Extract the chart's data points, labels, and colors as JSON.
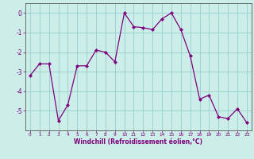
{
  "x": [
    0,
    1,
    2,
    3,
    4,
    5,
    6,
    7,
    8,
    9,
    10,
    11,
    12,
    13,
    14,
    15,
    16,
    17,
    18,
    19,
    20,
    21,
    22,
    23
  ],
  "y": [
    -3.2,
    -2.6,
    -2.6,
    -5.5,
    -4.7,
    -2.7,
    -2.7,
    -1.9,
    -2.0,
    -2.5,
    0.0,
    -0.7,
    -0.75,
    -0.85,
    -0.3,
    0.0,
    -0.85,
    -2.2,
    -4.4,
    -4.2,
    -5.3,
    -5.4,
    -4.9,
    -5.6
  ],
  "xlabel": "Windchill (Refroidissement éolien,°C)",
  "ylim": [
    -6,
    0.5
  ],
  "xlim": [
    -0.5,
    23.5
  ],
  "yticks": [
    0,
    -1,
    -2,
    -3,
    -4,
    -5
  ],
  "xticks": [
    0,
    1,
    2,
    3,
    4,
    5,
    6,
    7,
    8,
    9,
    10,
    11,
    12,
    13,
    14,
    15,
    16,
    17,
    18,
    19,
    20,
    21,
    22,
    23
  ],
  "line_color": "#800080",
  "marker_color": "#800080",
  "bg_color": "#cceee8",
  "grid_color": "#99cccc",
  "axis_color": "#555555",
  "tick_color": "#800080",
  "label_color": "#800080"
}
